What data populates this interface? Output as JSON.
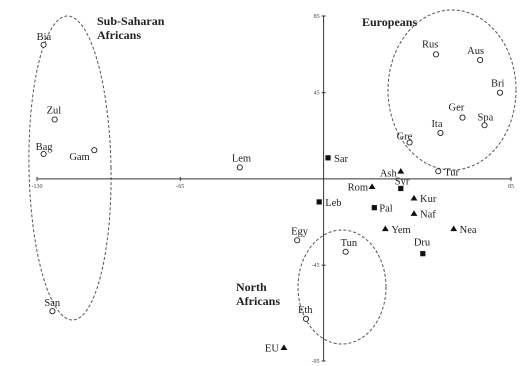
{
  "chart_data": {
    "type": "scatter",
    "title": "",
    "xlabel": "",
    "ylabel": "",
    "xlim": [
      -130,
      85
    ],
    "ylim": [
      -95,
      85
    ],
    "grid": false,
    "x_ticks": [
      {
        "value": -130,
        "label": "-130"
      },
      {
        "value": -65,
        "label": "-65"
      },
      {
        "value": 85,
        "label": "85"
      }
    ],
    "y_ticks": [
      {
        "value": 85,
        "label": "85"
      },
      {
        "value": 45,
        "label": "45"
      },
      {
        "value": -45,
        "label": "-45"
      },
      {
        "value": -95,
        "label": "-95"
      }
    ],
    "groups": [
      {
        "name": "Sub-Saharan Africans",
        "name_lines": [
          "Sub-Saharan",
          "Africans"
        ]
      },
      {
        "name": "Europeans",
        "name_lines": [
          "Europeans"
        ]
      },
      {
        "name": "North Africans",
        "name_lines": [
          "North",
          "Africans"
        ]
      }
    ],
    "points": [
      {
        "label": "Bia",
        "x": -127,
        "y": 70,
        "marker": "circle"
      },
      {
        "label": "Zul",
        "x": -122,
        "y": 31,
        "marker": "circle"
      },
      {
        "label": "Bag",
        "x": -127,
        "y": 13,
        "marker": "circle"
      },
      {
        "label": "Gam",
        "x": -104,
        "y": 15,
        "marker": "circle"
      },
      {
        "label": "San",
        "x": -123,
        "y": -69,
        "marker": "circle"
      },
      {
        "label": "Lem",
        "x": -38,
        "y": 6,
        "marker": "circle"
      },
      {
        "label": "Sar",
        "x": 2,
        "y": 11,
        "marker": "square"
      },
      {
        "label": "Rus",
        "x": 51,
        "y": 65,
        "marker": "circle"
      },
      {
        "label": "Aus",
        "x": 71,
        "y": 62,
        "marker": "circle"
      },
      {
        "label": "Bri",
        "x": 80,
        "y": 45,
        "marker": "circle"
      },
      {
        "label": "Ger",
        "x": 63,
        "y": 32,
        "marker": "circle"
      },
      {
        "label": "Spa",
        "x": 73,
        "y": 28,
        "marker": "circle"
      },
      {
        "label": "Ita",
        "x": 53,
        "y": 24,
        "marker": "circle"
      },
      {
        "label": "Gre",
        "x": 39,
        "y": 19,
        "marker": "circle"
      },
      {
        "label": "Ash",
        "x": 35,
        "y": 4,
        "marker": "triangle"
      },
      {
        "label": "Tur",
        "x": 52,
        "y": 4,
        "marker": "circle"
      },
      {
        "label": "Rom",
        "x": 22,
        "y": -4,
        "marker": "triangle"
      },
      {
        "label": "Syr",
        "x": 35,
        "y": -5,
        "marker": "square"
      },
      {
        "label": "Kur",
        "x": 41,
        "y": -10,
        "marker": "triangle"
      },
      {
        "label": "Pal",
        "x": 23,
        "y": -15,
        "marker": "square"
      },
      {
        "label": "Naf",
        "x": 41,
        "y": -18,
        "marker": "triangle"
      },
      {
        "label": "Leb",
        "x": -2,
        "y": -12,
        "marker": "square"
      },
      {
        "label": "Yem",
        "x": 28,
        "y": -26,
        "marker": "triangle"
      },
      {
        "label": "Nea",
        "x": 59,
        "y": -26,
        "marker": "triangle"
      },
      {
        "label": "Dru",
        "x": 45,
        "y": -39,
        "marker": "square"
      },
      {
        "label": "Egy",
        "x": -12,
        "y": -32,
        "marker": "circle"
      },
      {
        "label": "Tun",
        "x": 10,
        "y": -38,
        "marker": "circle"
      },
      {
        "label": "Eth",
        "x": -8,
        "y": -73,
        "marker": "circle"
      },
      {
        "label": "EU",
        "x": -18,
        "y": -88,
        "marker": "triangle"
      }
    ]
  }
}
